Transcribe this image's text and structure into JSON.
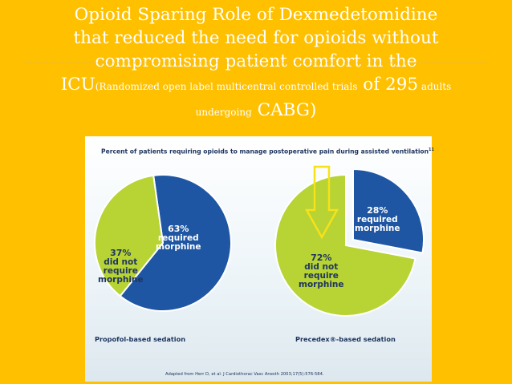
{
  "slide": {
    "title_line1": "Opioid Sparing Role of Dexmedetomidine",
    "title_line2": "that reduced the need for opioids without",
    "title_line3": "compromising patient comfort in the",
    "title_line4_lead": "ICU",
    "title_line4_small": "(Randomized open label multicentral controlled trials",
    "title_line4_of": " of ",
    "title_line4_num": "295",
    "title_line4_small2": " adults",
    "title_line5_small": "undergoing",
    "title_line5_big": " CABG)"
  },
  "colors": {
    "background": "#FFC000",
    "pie_blue": "#1E56A3",
    "pie_green": "#B7D334",
    "text_dark": "#1F3560",
    "arrow": "#F6E21A"
  },
  "chart_data": {
    "type": "pie",
    "title": "Percent of patients requiring opioids to manage postoperative pain during assisted ventilation",
    "title_ref": "11",
    "charts": [
      {
        "caption": "Propofol-based sedation",
        "slices": [
          {
            "pct_label": "63%",
            "label_lines": [
              "required",
              "morphine"
            ],
            "value": 63,
            "color": "#1E56A3"
          },
          {
            "pct_label": "37%",
            "label_lines": [
              "did not",
              "require",
              "morphine"
            ],
            "value": 37,
            "color": "#B7D334"
          }
        ]
      },
      {
        "caption": "Precedex®-based sedation",
        "slices": [
          {
            "pct_label": "28%",
            "label_lines": [
              "required",
              "morphine"
            ],
            "value": 28,
            "color": "#1E56A3"
          },
          {
            "pct_label": "72%",
            "label_lines": [
              "did not",
              "require",
              "morphine"
            ],
            "value": 72,
            "color": "#B7D334"
          }
        ]
      }
    ],
    "source": "Adapted from Herr D, et al. J Cardiothorac Vasc Anesth 2003;17(5):576-584."
  }
}
